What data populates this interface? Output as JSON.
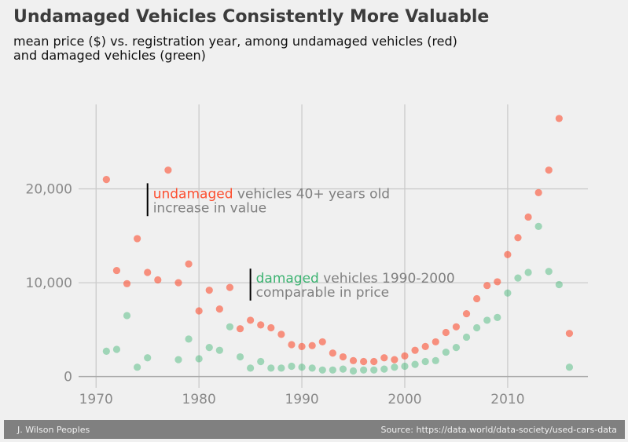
{
  "chart_data": {
    "type": "scatter",
    "title": "Undamaged Vehicles Consistently More Valuable",
    "subtitle": [
      "mean price ($) vs. registration year, among undamaged vehicles (red)",
      "and damaged vehicles (green)"
    ],
    "xlabel": "",
    "ylabel": "",
    "xlim": [
      1968.3,
      2017.8
    ],
    "ylim": [
      -1200,
      29000
    ],
    "xticks": [
      1970,
      1980,
      1990,
      2000,
      2010
    ],
    "xtick_labels": [
      "1970",
      "1980",
      "1990",
      "2000",
      "2010"
    ],
    "yticks": [
      0,
      10000,
      20000
    ],
    "ytick_labels": [
      "0",
      "10,000",
      "20,000"
    ],
    "grid": true,
    "series": [
      {
        "name": "undamaged",
        "color": "#fc4f30",
        "x": [
          1971,
          1972,
          1973,
          1974,
          1975,
          1976,
          1977,
          1978,
          1979,
          1980,
          1981,
          1982,
          1983,
          1984,
          1985,
          1986,
          1987,
          1988,
          1989,
          1990,
          1991,
          1992,
          1993,
          1994,
          1995,
          1996,
          1997,
          1998,
          1999,
          2000,
          2001,
          2002,
          2003,
          2004,
          2005,
          2006,
          2007,
          2008,
          2009,
          2010,
          2011,
          2012,
          2013,
          2014,
          2015,
          2016
        ],
        "y": [
          21000,
          11300,
          9900,
          14700,
          11100,
          10300,
          22000,
          10000,
          12000,
          7000,
          9200,
          7200,
          9500,
          5100,
          6000,
          5500,
          5200,
          4500,
          3400,
          3200,
          3300,
          3700,
          2500,
          2100,
          1700,
          1600,
          1600,
          2000,
          1800,
          2200,
          2800,
          3200,
          3700,
          4700,
          5300,
          6700,
          8300,
          9700,
          10100,
          13000,
          14800,
          17000,
          19600,
          22000,
          27500,
          4600
        ]
      },
      {
        "name": "damaged",
        "color": "#30a2da",
        "fill": "#3cb371",
        "x": [
          1971,
          1972,
          1973,
          1974,
          1975,
          1978,
          1979,
          1980,
          1981,
          1982,
          1983,
          1984,
          1985,
          1986,
          1987,
          1988,
          1989,
          1990,
          1991,
          1992,
          1993,
          1994,
          1995,
          1996,
          1997,
          1998,
          1999,
          2000,
          2001,
          2002,
          2003,
          2004,
          2005,
          2006,
          2007,
          2008,
          2009,
          2010,
          2011,
          2012,
          2013,
          2014,
          2015,
          2016
        ],
        "y": [
          2700,
          2900,
          6500,
          1000,
          2000,
          1800,
          4000,
          1900,
          3100,
          2800,
          5300,
          2100,
          900,
          1600,
          900,
          900,
          1100,
          1000,
          900,
          700,
          700,
          800,
          600,
          700,
          700,
          800,
          1000,
          1100,
          1300,
          1600,
          1700,
          2600,
          3100,
          4200,
          5200,
          6000,
          6300,
          8900,
          10500,
          11100,
          16000,
          11200,
          9800,
          1000
        ]
      }
    ],
    "annotations": [
      {
        "series": "undamaged",
        "highlight": "undamaged",
        "rest": " vehicles 40+ years old",
        "line2": "increase in value",
        "x": 1975,
        "y_range": [
          17100,
          20600
        ],
        "text_y": 19500
      },
      {
        "series": "damaged",
        "highlight": "damaged",
        "rest": " vehicles 1990-2000",
        "line2": "comparable in price",
        "x": 1985,
        "y_range": [
          8100,
          11500
        ],
        "text_y": 10500
      }
    ]
  },
  "colors": {
    "undamaged": "#fc4f30",
    "damaged_text": "#3cb371",
    "background": "#f0f0f0",
    "grid": "#cbcbcb",
    "footer_bg": "#808080"
  },
  "footer": {
    "author": "J. Wilson Peoples",
    "source": "Source: https://data.world/data-society/used-cars-data"
  }
}
